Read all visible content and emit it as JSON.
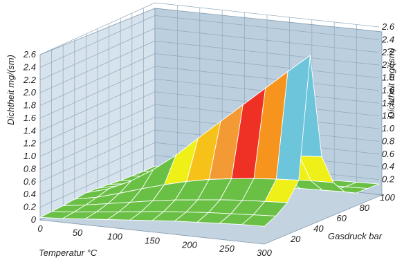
{
  "chart_data": {
    "type": "surface",
    "title": "",
    "xlabel": "Temperatur °C",
    "ylabel": "Gasdruck bar",
    "zlabel": "Dichtheit mg/(sm)",
    "x_ticks": [
      "0",
      "50",
      "100",
      "150",
      "200",
      "250",
      "300"
    ],
    "y_ticks": [
      "20",
      "40",
      "60",
      "80",
      "100"
    ],
    "z_ticks_left": [
      "0",
      "0.2",
      "0.4",
      "0.6",
      "0.8",
      "1.0",
      "1.2",
      "1.4",
      "1.6",
      "1.8",
      "2.0",
      "2.2",
      "2.4",
      "2.6"
    ],
    "z_ticks_right": [
      "0.2",
      "0.4",
      "0.6",
      "0.8",
      "1.0",
      "1.2",
      "1.4",
      "1.6",
      "1.8",
      "2.0",
      "2.2",
      "2.4",
      "2.6"
    ],
    "xlim": [
      0,
      300
    ],
    "ylim": [
      0,
      100
    ],
    "zlim": [
      0,
      2.6
    ],
    "x_grid": [
      0,
      30,
      60,
      90,
      120,
      150,
      180,
      210,
      240,
      270,
      300
    ],
    "y_grid": [
      0,
      10,
      20,
      30,
      40,
      50,
      60,
      70,
      80,
      90,
      100
    ],
    "z_values": [
      [
        0.04,
        0.06,
        0.09,
        0.12,
        0.15,
        0.18,
        0.21,
        0.23,
        0.25,
        0.27,
        0.28
      ],
      [
        0.05,
        0.08,
        0.12,
        0.16,
        0.2,
        0.24,
        0.27,
        0.3,
        0.32,
        0.34,
        0.36
      ],
      [
        0.06,
        0.11,
        0.17,
        0.23,
        0.29,
        0.34,
        0.38,
        0.42,
        0.45,
        0.47,
        0.49
      ],
      [
        0.08,
        0.15,
        0.25,
        0.36,
        0.46,
        0.55,
        0.62,
        0.67,
        0.71,
        0.74,
        0.76
      ],
      [
        0.1,
        0.2,
        0.36,
        0.58,
        0.84,
        1.15,
        1.45,
        1.75,
        2.05,
        2.35,
        2.64
      ],
      [
        0.09,
        0.17,
        0.28,
        0.41,
        0.54,
        0.66,
        0.76,
        0.84,
        0.9,
        0.94,
        0.97
      ],
      [
        0.07,
        0.12,
        0.18,
        0.25,
        0.31,
        0.36,
        0.4,
        0.43,
        0.45,
        0.47,
        0.48
      ],
      [
        0.05,
        0.08,
        0.11,
        0.14,
        0.17,
        0.19,
        0.21,
        0.22,
        0.23,
        0.24,
        0.25
      ],
      [
        0.04,
        0.06,
        0.08,
        0.1,
        0.11,
        0.12,
        0.13,
        0.14,
        0.14,
        0.15,
        0.15
      ],
      [
        0.03,
        0.05,
        0.06,
        0.07,
        0.08,
        0.09,
        0.1,
        0.11,
        0.12,
        0.13,
        0.14
      ],
      [
        0.03,
        0.04,
        0.05,
        0.06,
        0.07,
        0.08,
        0.09,
        0.1,
        0.11,
        0.12,
        0.13
      ]
    ],
    "color_bands": [
      {
        "max": 0.6,
        "color": "#6abf45"
      },
      {
        "max": 0.8,
        "color": "#eef018"
      },
      {
        "max": 1.0,
        "color": "#f6c21a"
      },
      {
        "max": 1.2,
        "color": "#f49a34"
      },
      {
        "max": 1.4,
        "color": "#ee3124"
      },
      {
        "max": 1.6,
        "color": "#f7941d"
      },
      {
        "max": 1.8,
        "color": "#6cc5da"
      },
      {
        "max": 2.0,
        "color": "#49a7d3"
      },
      {
        "max": 2.2,
        "color": "#3f5fa8"
      },
      {
        "max": 2.4,
        "color": "#7b57a3"
      },
      {
        "max": 2.7,
        "color": "#d5348f"
      }
    ],
    "legend": "none",
    "grid": true
  },
  "colors": {
    "wall_left": "#d6e2ec",
    "wall_back": "#bccfde",
    "floor": "#c3d3e0",
    "grid_line": "#8fa8bc"
  }
}
